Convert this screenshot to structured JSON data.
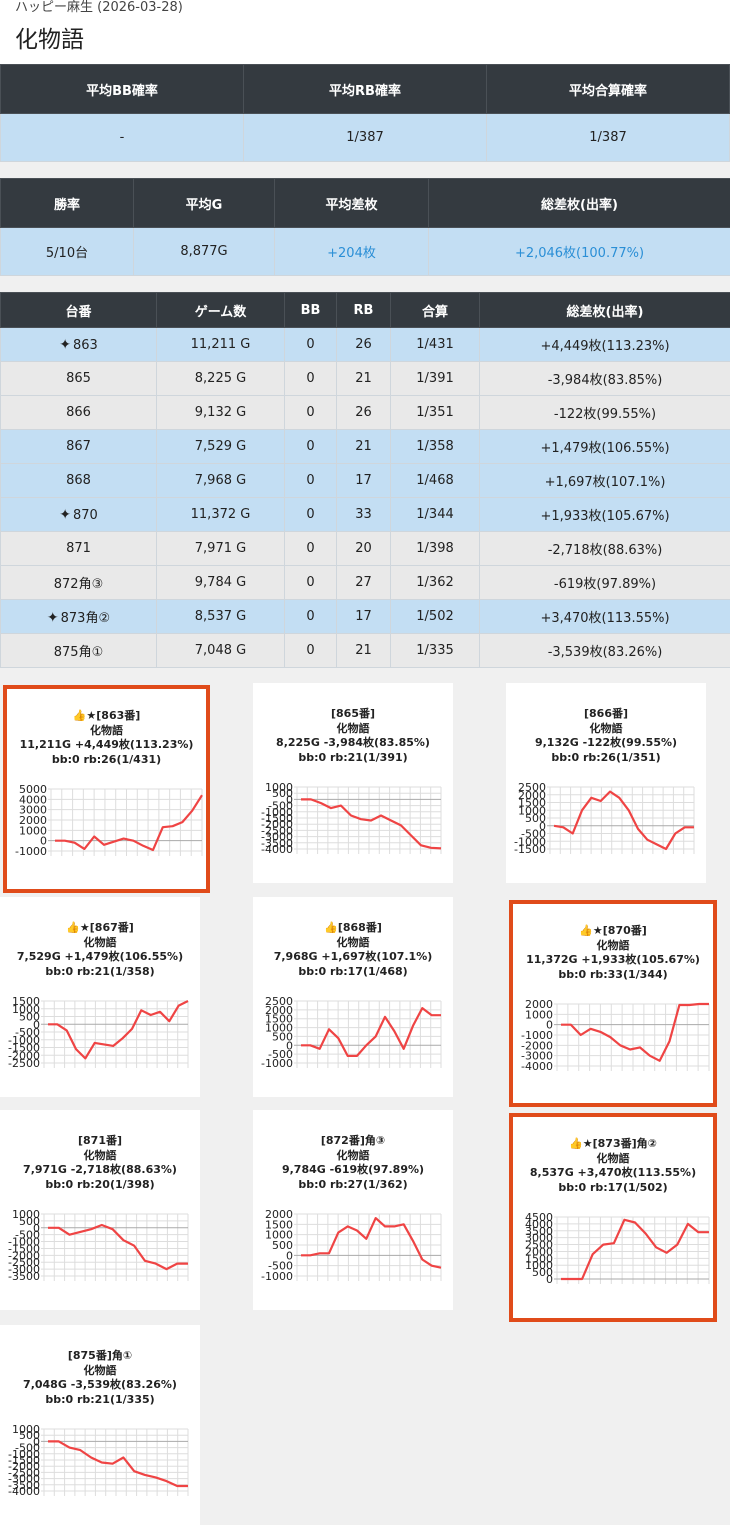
{
  "hall_date": "ハッピー麻生 (2026-03-28)",
  "machine_name": "化物語",
  "summary1": {
    "headers": [
      "平均BB確率",
      "平均RB確率",
      "平均合算確率"
    ],
    "values": [
      "-",
      "1/387",
      "1/387"
    ]
  },
  "summary2": {
    "headers": [
      "勝率",
      "平均G",
      "平均差枚",
      "総差枚(出率)"
    ],
    "values": [
      "5/10台",
      "8,877G",
      "+204枚",
      "+2,046枚(100.77%)"
    ]
  },
  "machines_table": {
    "headers": [
      "台番",
      "ゲーム数",
      "BB",
      "RB",
      "合算",
      "総差枚(出率)"
    ],
    "rows": [
      {
        "num": "863",
        "sparkle": true,
        "games": "11,211 G",
        "bb": "0",
        "rb": "26",
        "total": "1/431",
        "diff": "+4,449枚(113.23%)",
        "color": "blue"
      },
      {
        "num": "865",
        "sparkle": false,
        "games": "8,225 G",
        "bb": "0",
        "rb": "21",
        "total": "1/391",
        "diff": "-3,984枚(83.85%)",
        "color": "gray"
      },
      {
        "num": "866",
        "sparkle": false,
        "games": "9,132 G",
        "bb": "0",
        "rb": "26",
        "total": "1/351",
        "diff": "-122枚(99.55%)",
        "color": "gray"
      },
      {
        "num": "867",
        "sparkle": false,
        "games": "7,529 G",
        "bb": "0",
        "rb": "21",
        "total": "1/358",
        "diff": "+1,479枚(106.55%)",
        "color": "blue"
      },
      {
        "num": "868",
        "sparkle": false,
        "games": "7,968 G",
        "bb": "0",
        "rb": "17",
        "total": "1/468",
        "diff": "+1,697枚(107.1%)",
        "color": "blue"
      },
      {
        "num": "870",
        "sparkle": true,
        "games": "11,372 G",
        "bb": "0",
        "rb": "33",
        "total": "1/344",
        "diff": "+1,933枚(105.67%)",
        "color": "blue"
      },
      {
        "num": "871",
        "sparkle": false,
        "games": "7,971 G",
        "bb": "0",
        "rb": "20",
        "total": "1/398",
        "diff": "-2,718枚(88.63%)",
        "color": "gray"
      },
      {
        "num": "872角③",
        "sparkle": false,
        "games": "9,784 G",
        "bb": "0",
        "rb": "27",
        "total": "1/362",
        "diff": "-619枚(97.89%)",
        "color": "gray"
      },
      {
        "num": "873角②",
        "sparkle": true,
        "games": "8,537 G",
        "bb": "0",
        "rb": "17",
        "total": "1/502",
        "diff": "+3,470枚(113.55%)",
        "color": "blue"
      },
      {
        "num": "875角①",
        "sparkle": false,
        "games": "7,048 G",
        "bb": "0",
        "rb": "21",
        "total": "1/335",
        "diff": "-3,539枚(83.26%)",
        "color": "gray"
      }
    ]
  },
  "chart_cards": [
    {
      "title": "👍★[863番]",
      "subtitle": "化物語",
      "stats": "11,211G +4,449枚(113.23%)",
      "bonus": "bb:0 rb:26(1/431)",
      "highlighted": true,
      "chart_data": {
        "type": "line",
        "yticks": [
          "5000",
          "4000",
          "3000",
          "2000",
          "1000",
          "0",
          "-1000"
        ],
        "ylim": [
          -1000,
          5000
        ],
        "values": [
          0,
          0,
          -200,
          -800,
          400,
          -400,
          -100,
          200,
          0,
          -500,
          -900,
          1300,
          1400,
          1800,
          2900,
          4400
        ]
      }
    },
    {
      "title": "[865番]",
      "subtitle": "化物語",
      "stats": "8,225G -3,984枚(83.85%)",
      "bonus": "bb:0 rb:21(1/391)",
      "highlighted": false,
      "chart_data": {
        "type": "line",
        "yticks": [
          "1000",
          "500",
          "0",
          "-500",
          "-1000",
          "-1500",
          "-2000",
          "-2500",
          "-3000",
          "-3500",
          "-4000"
        ],
        "ylim": [
          -4000,
          1000
        ],
        "values": [
          0,
          0,
          -300,
          -700,
          -500,
          -1300,
          -1600,
          -1700,
          -1300,
          -1700,
          -2100,
          -2900,
          -3700,
          -3900,
          -3950
        ]
      }
    },
    {
      "title": "[866番]",
      "subtitle": "化物語",
      "stats": "9,132G -122枚(99.55%)",
      "bonus": "bb:0 rb:26(1/351)",
      "highlighted": false,
      "chart_data": {
        "type": "line",
        "yticks": [
          "2500",
          "2000",
          "1500",
          "1000",
          "500",
          "0",
          "-500",
          "-1000",
          "-1500"
        ],
        "ylim": [
          -1500,
          2500
        ],
        "values": [
          0,
          -100,
          -500,
          1000,
          1800,
          1600,
          2200,
          1800,
          1000,
          -200,
          -900,
          -1200,
          -1500,
          -500,
          -100,
          -100
        ]
      }
    },
    {
      "title": "👍★[867番]",
      "subtitle": "化物語",
      "stats": "7,529G +1,479枚(106.55%)",
      "bonus": "bb:0 rb:21(1/358)",
      "highlighted": false,
      "chart_data": {
        "type": "line",
        "yticks": [
          "1500",
          "1000",
          "500",
          "0",
          "-500",
          "-1000",
          "-1500",
          "-2000",
          "-2500"
        ],
        "ylim": [
          -2500,
          1500
        ],
        "values": [
          0,
          0,
          -400,
          -1600,
          -2200,
          -1200,
          -1300,
          -1400,
          -900,
          -300,
          900,
          600,
          800,
          200,
          1200,
          1500
        ]
      }
    },
    {
      "title": "👍[868番]",
      "subtitle": "化物語",
      "stats": "7,968G +1,697枚(107.1%)",
      "bonus": "bb:0 rb:17(1/468)",
      "highlighted": false,
      "chart_data": {
        "type": "line",
        "yticks": [
          "2500",
          "2000",
          "1500",
          "1000",
          "500",
          "0",
          "-500",
          "-1000"
        ],
        "ylim": [
          -1000,
          2500
        ],
        "values": [
          0,
          0,
          -200,
          900,
          400,
          -600,
          -600,
          0,
          500,
          1600,
          800,
          -200,
          1100,
          2100,
          1700,
          1700
        ]
      }
    },
    {
      "title": "👍★[870番]",
      "subtitle": "化物語",
      "stats": "11,372G +1,933枚(105.67%)",
      "bonus": "bb:0 rb:33(1/344)",
      "highlighted": true,
      "chart_data": {
        "type": "line",
        "yticks": [
          "2000",
          "1000",
          "0",
          "-1000",
          "-2000",
          "-3000",
          "-4000"
        ],
        "ylim": [
          -4000,
          2000
        ],
        "values": [
          0,
          0,
          -1000,
          -400,
          -700,
          -1200,
          -2000,
          -2400,
          -2200,
          -3000,
          -3500,
          -1600,
          1900,
          1900,
          2000,
          2000
        ]
      }
    },
    {
      "title": "[871番]",
      "subtitle": "化物語",
      "stats": "7,971G -2,718枚(88.63%)",
      "bonus": "bb:0 rb:20(1/398)",
      "highlighted": false,
      "chart_data": {
        "type": "line",
        "yticks": [
          "1000",
          "500",
          "0",
          "-500",
          "-1000",
          "-1500",
          "-2000",
          "-2500",
          "-3000",
          "-3500"
        ],
        "ylim": [
          -3500,
          1000
        ],
        "values": [
          0,
          0,
          -500,
          -300,
          -100,
          200,
          -100,
          -900,
          -1300,
          -2400,
          -2600,
          -3000,
          -2600,
          -2600
        ]
      }
    },
    {
      "title": "[872番]角③",
      "subtitle": "化物語",
      "stats": "9,784G -619枚(97.89%)",
      "bonus": "bb:0 rb:27(1/362)",
      "highlighted": false,
      "chart_data": {
        "type": "line",
        "yticks": [
          "2000",
          "1500",
          "1000",
          "500",
          "0",
          "-500",
          "-1000"
        ],
        "ylim": [
          -1000,
          2000
        ],
        "values": [
          0,
          0,
          100,
          100,
          1100,
          1400,
          1200,
          800,
          1800,
          1400,
          1400,
          1500,
          700,
          -200,
          -500,
          -600
        ]
      }
    },
    {
      "title": "👍★[873番]角②",
      "subtitle": "化物語",
      "stats": "8,537G +3,470枚(113.55%)",
      "bonus": "bb:0 rb:17(1/502)",
      "highlighted": true,
      "chart_data": {
        "type": "line",
        "yticks": [
          "4500",
          "4000",
          "3500",
          "3000",
          "2500",
          "2000",
          "1500",
          "1000",
          "500",
          "0"
        ],
        "ylim": [
          0,
          4500
        ],
        "values": [
          0,
          0,
          0,
          1800,
          2500,
          2600,
          4300,
          4100,
          3300,
          2300,
          1900,
          2500,
          4000,
          3400,
          3400
        ]
      }
    },
    {
      "title": "[875番]角①",
      "subtitle": "化物語",
      "stats": "7,048G -3,539枚(83.26%)",
      "bonus": "bb:0 rb:21(1/335)",
      "highlighted": false,
      "chart_data": {
        "type": "line",
        "yticks": [
          "1000",
          "500",
          "0",
          "-500",
          "-1000",
          "-1500",
          "-2000",
          "-2500",
          "-3000",
          "-3500",
          "-4000"
        ],
        "ylim": [
          -4000,
          1000
        ],
        "values": [
          0,
          0,
          -500,
          -700,
          -1300,
          -1700,
          -1800,
          -1300,
          -2400,
          -2700,
          -2900,
          -3200,
          -3600,
          -3600
        ]
      }
    }
  ],
  "colors": {
    "header_dark": "#343a40",
    "blue_row": "#c3def3",
    "gray_row": "#e9e9e9",
    "positive_text": "#2b8fd6",
    "highlight_border": "#e04b1a",
    "line": "#ef4444"
  }
}
